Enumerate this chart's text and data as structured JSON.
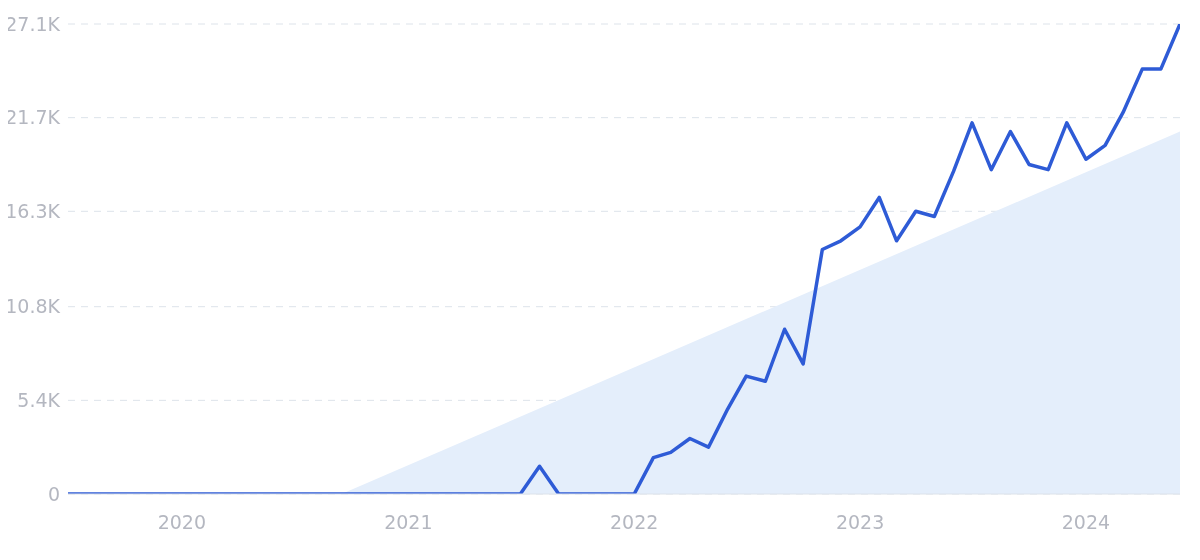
{
  "chart_data": {
    "type": "line",
    "x": [
      "2019-07",
      "2019-08",
      "2019-09",
      "2019-10",
      "2019-11",
      "2019-12",
      "2020-01",
      "2020-02",
      "2020-03",
      "2020-04",
      "2020-05",
      "2020-06",
      "2020-07",
      "2020-08",
      "2020-09",
      "2020-10",
      "2020-11",
      "2020-12",
      "2021-01",
      "2021-02",
      "2021-03",
      "2021-04",
      "2021-05",
      "2021-06",
      "2021-07",
      "2021-08",
      "2021-09",
      "2021-10",
      "2021-11",
      "2021-12",
      "2022-01",
      "2022-02",
      "2022-03",
      "2022-04",
      "2022-05",
      "2022-06",
      "2022-07",
      "2022-08",
      "2022-09",
      "2022-10",
      "2022-11",
      "2022-12",
      "2023-01",
      "2023-02",
      "2023-03",
      "2023-04",
      "2023-05",
      "2023-06",
      "2023-07",
      "2023-08",
      "2023-09",
      "2023-10",
      "2023-11",
      "2023-12",
      "2024-01",
      "2024-02",
      "2024-03",
      "2024-04",
      "2024-05",
      "2024-06"
    ],
    "series": [
      {
        "type": "area",
        "color": "#e4eefb",
        "x": [
          "2020-09-15",
          "2024-06"
        ],
        "values": [
          0,
          20900
        ]
      },
      {
        "color": "#2e5bd6",
        "values": [
          0,
          0,
          0,
          0,
          0,
          0,
          0,
          0,
          0,
          0,
          0,
          0,
          0,
          0,
          0,
          0,
          0,
          0,
          0,
          0,
          0,
          0,
          0,
          0,
          0,
          1600,
          0,
          0,
          0,
          0,
          0,
          2100,
          2400,
          3200,
          2700,
          4900,
          6800,
          6500,
          9500,
          7500,
          14100,
          14600,
          15400,
          17100,
          14600,
          16300,
          16000,
          18600,
          21400,
          18700,
          20900,
          19000,
          18700,
          21400,
          19300,
          20100,
          22000,
          24500,
          24500,
          27100
        ]
      }
    ],
    "xlim": [
      "2019-07",
      "2024-06"
    ],
    "xticks": [
      "2020",
      "2021",
      "2022",
      "2023",
      "2024"
    ],
    "ylim": [
      0,
      27100
    ],
    "yticks": [
      0,
      {
        "value": 5400,
        "label": "5.4K"
      },
      {
        "value": 10800,
        "label": "10.8K"
      },
      {
        "value": 16300,
        "label": "16.3K"
      },
      {
        "value": 21700,
        "label": "21.7K"
      },
      {
        "value": 27100,
        "label": "27.1K"
      }
    ],
    "grid": "y"
  }
}
